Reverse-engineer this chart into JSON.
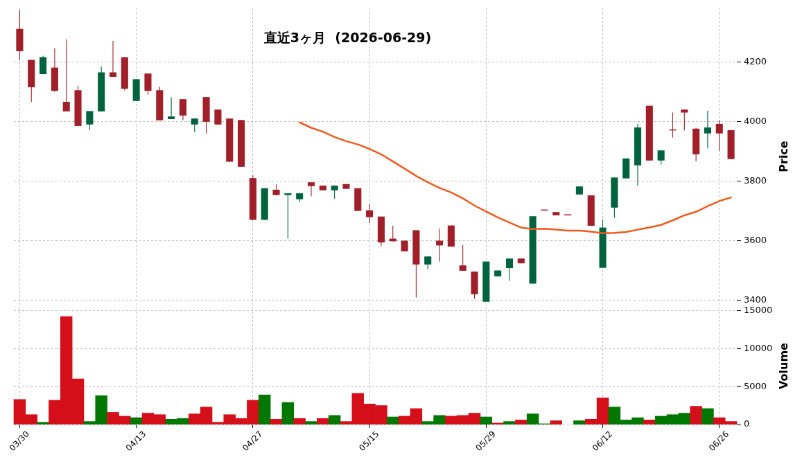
{
  "chart_data": [
    {
      "type": "candlestick",
      "title": "直近3ヶ月  (2026-06-29)",
      "ylabel": "Price",
      "categories": [
        null,
        null,
        null,
        null,
        null,
        null,
        null,
        null,
        null,
        null,
        null,
        null,
        null,
        null,
        null,
        null,
        null,
        null,
        null,
        null,
        null,
        null,
        null,
        null,
        null,
        null,
        null,
        null,
        null,
        null,
        null,
        null,
        null,
        null,
        null,
        null,
        null,
        null,
        null,
        null,
        null,
        null,
        null,
        null,
        null,
        null,
        null,
        null,
        null,
        null,
        null,
        null,
        null,
        null,
        null,
        null,
        null,
        null,
        null,
        null,
        null,
        null
      ],
      "ohlc": [
        [
          4311,
          4375,
          4206,
          4236
        ],
        [
          4207,
          4207,
          4065,
          4115
        ],
        [
          4159,
          4221,
          4159,
          4216
        ],
        [
          4181,
          4246,
          4100,
          4103
        ],
        [
          4066,
          4276,
          4034,
          4034
        ],
        [
          4105,
          4120,
          3985,
          3985
        ],
        [
          3990,
          4035,
          3970,
          4035
        ],
        [
          4034,
          4185,
          4034,
          4165
        ],
        [
          4165,
          4271,
          4150,
          4150
        ],
        [
          4216,
          4216,
          4104,
          4110
        ],
        [
          4069,
          4142,
          4069,
          4142
        ],
        [
          4161,
          4161,
          4090,
          4103
        ],
        [
          4105,
          4116,
          4004,
          4004
        ],
        [
          4008,
          4081,
          4008,
          4017
        ],
        [
          4075,
          4075,
          4004,
          4020
        ],
        [
          3990,
          4010,
          3964,
          4010
        ],
        [
          4082,
          4082,
          3960,
          3999
        ],
        [
          4040,
          4040,
          3990,
          3990
        ],
        [
          4010,
          4010,
          3865,
          3865
        ],
        [
          4005,
          4005,
          3848,
          3848
        ],
        [
          3810,
          3819,
          3670,
          3670
        ],
        [
          3670,
          3776,
          3670,
          3776
        ],
        [
          3771,
          3789,
          3753,
          3753
        ],
        [
          3753,
          3759,
          3607,
          3759
        ],
        [
          3739,
          3759,
          3729,
          3759
        ],
        [
          3796,
          3796,
          3749,
          3783
        ],
        [
          3785,
          3785,
          3769,
          3769
        ],
        [
          3769,
          3785,
          3740,
          3785
        ],
        [
          3790,
          3790,
          3774,
          3774
        ],
        [
          3776,
          3776,
          3700,
          3700
        ],
        [
          3702,
          3723,
          3659,
          3679
        ],
        [
          3681,
          3681,
          3581,
          3594
        ],
        [
          3607,
          3650,
          3598,
          3598
        ],
        [
          3600,
          3600,
          3564,
          3564
        ],
        [
          3635,
          3635,
          3409,
          3520
        ],
        [
          3520,
          3547,
          3504,
          3547
        ],
        [
          3600,
          3641,
          3530,
          3584
        ],
        [
          3651,
          3651,
          3580,
          3580
        ],
        [
          3517,
          3585,
          3499,
          3499
        ],
        [
          3496,
          3496,
          3405,
          3420
        ],
        [
          3395,
          3530,
          3395,
          3530
        ],
        [
          3480,
          3500,
          3480,
          3500
        ],
        [
          3508,
          3540,
          3465,
          3540
        ],
        [
          3540,
          3540,
          3524,
          3524
        ],
        [
          3456,
          3682,
          3456,
          3682
        ],
        [
          3702,
          3702,
          3701,
          3701
        ],
        [
          3696,
          3696,
          3685,
          3685
        ],
        [
          3687,
          3687,
          3685,
          3685
        ],
        [
          3755,
          3782,
          3755,
          3782
        ],
        [
          3752,
          3752,
          3650,
          3650
        ],
        [
          3509,
          3671,
          3509,
          3644
        ],
        [
          3711,
          3812,
          3676,
          3812
        ],
        [
          3809,
          3876,
          3809,
          3876
        ],
        [
          3853,
          3992,
          3785,
          3980
        ],
        [
          4053,
          4053,
          3869,
          3869
        ],
        [
          3869,
          3903,
          3855,
          3903
        ],
        [
          3971,
          4030,
          3946,
          3970
        ],
        [
          4040,
          4040,
          3970,
          4030
        ],
        [
          3976,
          3979,
          3866,
          3890
        ],
        [
          3960,
          4036,
          3910,
          3980
        ],
        [
          3992,
          4005,
          3901,
          3960
        ],
        [
          3971,
          3971,
          3874,
          3874
        ]
      ],
      "colors": [
        "#a01f28",
        "#a01f28",
        "#006340",
        "#a01f28",
        "#a01f28",
        "#a01f28",
        "#006340",
        "#006340",
        "#a01f28",
        "#a01f28",
        "#006340",
        "#a01f28",
        "#a01f28",
        "#006340",
        "#a01f28",
        "#006340",
        "#a01f28",
        "#a01f28",
        "#a01f28",
        "#a01f28",
        "#a01f28",
        "#006340",
        "#a01f28",
        "#006340",
        "#006340",
        "#a01f28",
        "#a01f28",
        "#006340",
        "#a01f28",
        "#a01f28",
        "#a01f28",
        "#a01f28",
        "#a01f28",
        "#a01f28",
        "#a01f28",
        "#006340",
        "#a01f28",
        "#a01f28",
        "#a01f28",
        "#a01f28",
        "#006340",
        "#006340",
        "#006340",
        "#a01f28",
        "#006340",
        "#a01f28",
        "#a01f28",
        "#a01f28",
        "#006340",
        "#a01f28",
        "#006340",
        "#006340",
        "#006340",
        "#006340",
        "#a01f28",
        "#006340",
        "#a01f28",
        "#a01f28",
        "#a01f28",
        "#006340",
        "#a01f28",
        "#a01f28"
      ],
      "series": [
        {
          "type": "line",
          "color": "#f05a1e",
          "values": [
            null,
            null,
            null,
            null,
            null,
            null,
            null,
            null,
            null,
            null,
            null,
            null,
            null,
            null,
            null,
            null,
            null,
            null,
            null,
            null,
            null,
            null,
            null,
            null,
            3997,
            3979,
            3966,
            3948,
            3934,
            3923,
            3908,
            3890,
            3866,
            3842,
            3817,
            3796,
            3777,
            3762,
            3742,
            3718,
            3698,
            3678,
            3661,
            3644,
            3639,
            3640,
            3637,
            3634,
            3634,
            3630,
            3625,
            3626,
            3629,
            3637,
            3644,
            3653,
            3668,
            3685,
            3697,
            3716,
            3733,
            3745
          ]
        }
      ],
      "ylim": [
        3385,
        4380
      ],
      "yticks": [
        3400,
        3600,
        3800,
        4000,
        4200
      ],
      "grid": true,
      "tick_labels": "y"
    },
    {
      "type": "bar",
      "ylabel": "Volume",
      "categories": [
        "03/30",
        null,
        null,
        null,
        null,
        null,
        null,
        null,
        null,
        null,
        "04/13",
        null,
        null,
        null,
        null,
        null,
        null,
        null,
        null,
        null,
        "04/27",
        null,
        null,
        null,
        null,
        null,
        null,
        null,
        null,
        null,
        "05/15",
        null,
        null,
        null,
        null,
        null,
        null,
        null,
        null,
        null,
        "05/29",
        null,
        null,
        null,
        null,
        null,
        null,
        null,
        null,
        null,
        "06/12",
        null,
        null,
        null,
        null,
        null,
        null,
        null,
        null,
        null,
        "06/26",
        null
      ],
      "values": [
        3300,
        1300,
        300,
        3200,
        14200,
        6000,
        400,
        3800,
        1600,
        1100,
        900,
        1500,
        1300,
        700,
        800,
        1400,
        2300,
        300,
        1300,
        800,
        3200,
        3900,
        700,
        2900,
        800,
        400,
        800,
        1200,
        400,
        4100,
        2700,
        2500,
        1000,
        1100,
        2100,
        400,
        1200,
        1100,
        1200,
        1500,
        1000,
        200,
        400,
        600,
        1400,
        100,
        500,
        null,
        500,
        700,
        3500,
        2300,
        600,
        900,
        600,
        1100,
        1300,
        1500,
        2400,
        2100,
        900,
        400
      ],
      "colors": [
        "#d40f1a",
        "#d40f1a",
        "#007800",
        "#d40f1a",
        "#d40f1a",
        "#d40f1a",
        "#007800",
        "#007800",
        "#d40f1a",
        "#d40f1a",
        "#007800",
        "#d40f1a",
        "#d40f1a",
        "#007800",
        "#007800",
        "#d40f1a",
        "#d40f1a",
        "#d40f1a",
        "#d40f1a",
        "#d40f1a",
        "#d40f1a",
        "#007800",
        "#d40f1a",
        "#007800",
        "#d40f1a",
        "#007800",
        "#d40f1a",
        "#007800",
        "#d40f1a",
        "#d40f1a",
        "#d40f1a",
        "#d40f1a",
        "#007800",
        "#d40f1a",
        "#d40f1a",
        "#007800",
        "#007800",
        "#d40f1a",
        "#d40f1a",
        "#d40f1a",
        "#007800",
        "#d40f1a",
        "#007800",
        "#d40f1a",
        "#007800",
        "#007800",
        "#d40f1a",
        "#d40f1a",
        "#007800",
        "#d40f1a",
        "#d40f1a",
        "#007800",
        "#007800",
        "#007800",
        "#d40f1a",
        "#007800",
        "#007800",
        "#007800",
        "#d40f1a",
        "#007800",
        "#d40f1a",
        "#d40f1a"
      ],
      "ylim": [
        0,
        15400
      ],
      "yticks": [
        0,
        5000,
        10000,
        15000
      ],
      "grid": true
    }
  ]
}
